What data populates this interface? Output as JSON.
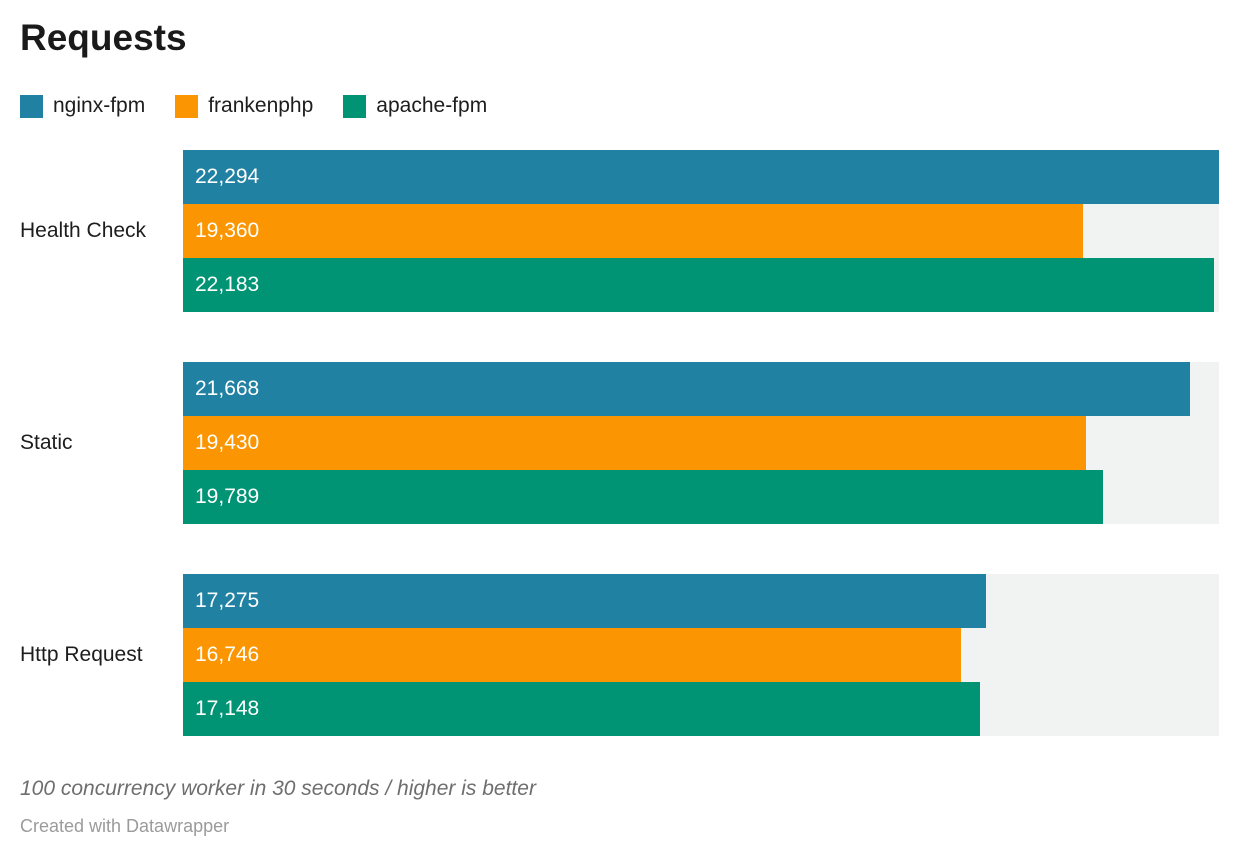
{
  "page": {
    "background": "#ffffff"
  },
  "header": {
    "title": "Requests"
  },
  "chart_data": {
    "type": "bar",
    "orientation": "horizontal",
    "grouped": true,
    "title": "Requests",
    "categories": [
      "Health Check",
      "Static",
      "Http Request"
    ],
    "series": [
      {
        "name": "nginx-fpm",
        "color": "#2181a3",
        "values": [
          22294,
          21668,
          17275
        ],
        "value_labels": [
          "22,294",
          "21,668",
          "17,275"
        ]
      },
      {
        "name": "frankenphp",
        "color": "#fb9501",
        "values": [
          19360,
          19430,
          16746
        ],
        "value_labels": [
          "19,360",
          "19,430",
          "16,746"
        ]
      },
      {
        "name": "apache-fpm",
        "color": "#009475",
        "values": [
          22183,
          19789,
          17148
        ],
        "value_labels": [
          "22,183",
          "19,789",
          "17,148"
        ]
      }
    ],
    "xmax": 22294,
    "track_color": "#f1f2f2",
    "value_label_color": "#ffffff",
    "legend_position": "top",
    "grid": false
  },
  "footer": {
    "note": "100 concurrency worker in 30 seconds / higher is better",
    "byline": "Created with Datawrapper"
  }
}
